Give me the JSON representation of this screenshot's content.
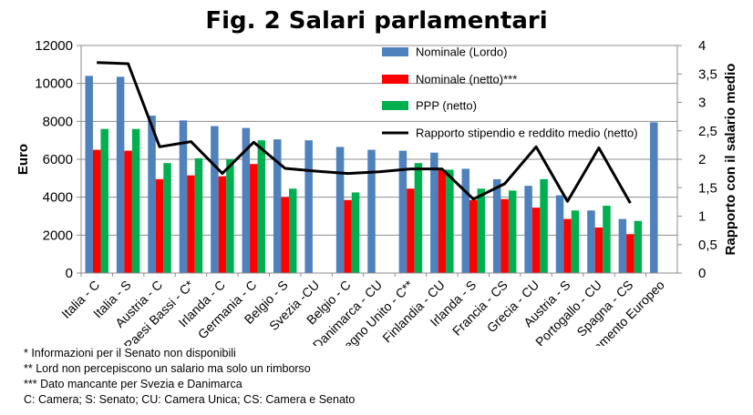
{
  "chart_data": {
    "type": "bar",
    "title": "Fig. 2 Salari parlamentari",
    "ylabel": "Euro",
    "ylabel_right": "Rapporto con il salario medio",
    "ylim": [
      0,
      12000
    ],
    "ylim_right": [
      0,
      4
    ],
    "yticks": [
      "0",
      "2000",
      "4000",
      "6000",
      "8000",
      "10000",
      "12000"
    ],
    "yticks_right": [
      "0",
      "0,5",
      "1",
      "1,5",
      "2",
      "2,5",
      "3",
      "3,5",
      "4"
    ],
    "grid": true,
    "legend_position": "top-right",
    "categories": [
      "Italia - C",
      "Italia - S",
      "Austria - C",
      "Paesi Bassi - C*",
      "Irlanda - C",
      "Germania - C",
      "Belgio - S",
      "Svezia -CU",
      "Belgio - C",
      "Danimarca - CU",
      "Regno Unito - C**",
      "Finlandia - CU",
      "Irlanda - S",
      "Francia - CS",
      "Grecia - CU",
      "Austria - S",
      "Portogallo - CU",
      "Spagna - CS",
      "Parlamento Europeo"
    ],
    "series": [
      {
        "name": "Nominale (Lordo)",
        "type": "bar",
        "axis": "left",
        "color": "#4F81BD",
        "values": [
          10400,
          10350,
          8300,
          8050,
          7750,
          7650,
          7050,
          7000,
          6650,
          6500,
          6450,
          6350,
          5500,
          4950,
          4600,
          4100,
          3300,
          2850,
          7950
        ]
      },
      {
        "name": "Nominale (netto)***",
        "type": "bar",
        "axis": "left",
        "color": "#FF0000",
        "values": [
          6500,
          6450,
          4950,
          5150,
          5100,
          5750,
          4000,
          null,
          3850,
          null,
          4450,
          5450,
          3850,
          3900,
          3450,
          2850,
          2400,
          2050,
          null
        ]
      },
      {
        "name": "PPP (netto)",
        "type": "bar",
        "axis": "left",
        "color": "#00B050",
        "values": [
          7600,
          7600,
          5800,
          6050,
          6000,
          7000,
          4450,
          null,
          4250,
          null,
          5800,
          5450,
          4450,
          4350,
          4950,
          3300,
          3550,
          2750,
          null
        ]
      },
      {
        "name": "Rapporto stipendio e reddito medio (netto)",
        "type": "line",
        "axis": "right",
        "color": "#000000",
        "values": [
          3.7,
          3.68,
          2.22,
          2.31,
          1.75,
          2.3,
          1.84,
          1.79,
          1.75,
          1.78,
          1.83,
          1.83,
          1.3,
          1.57,
          2.22,
          1.26,
          2.2,
          1.23,
          null
        ]
      }
    ]
  },
  "footnotes": [
    "*  Informazioni per il Senato non disponibili",
    "** Lord non percepiscono un salario ma solo un rimborso",
    "***  Dato mancante per Svezia e Danimarca",
    "C: Camera; S: Senato; CU: Camera Unica; CS: Camera e Senato"
  ]
}
